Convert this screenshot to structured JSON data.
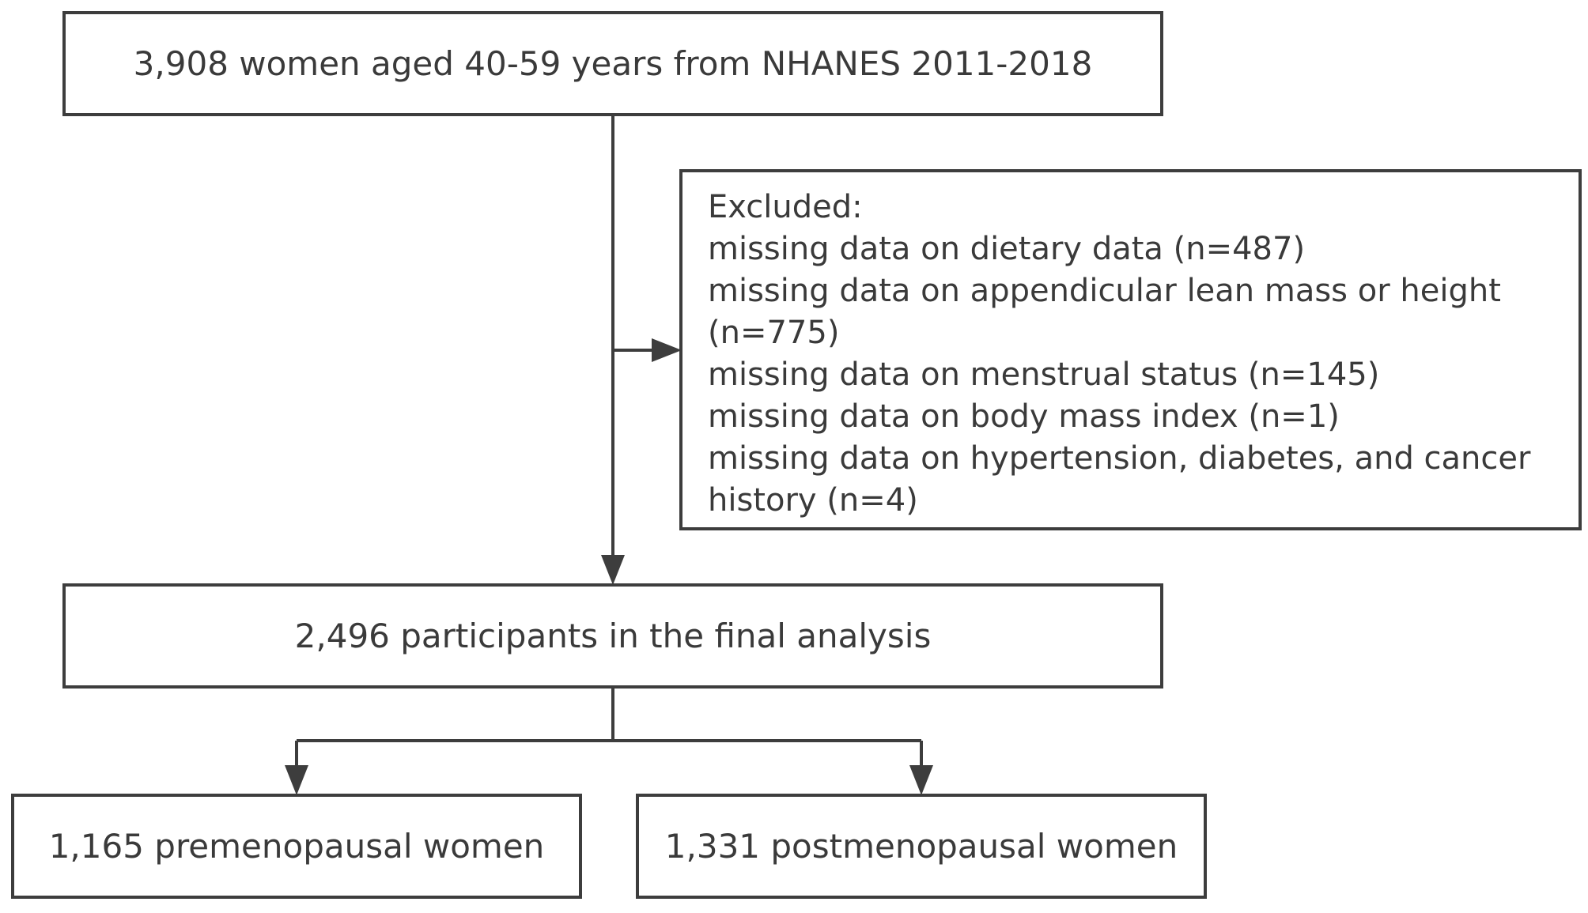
{
  "boxes": {
    "start": "3,908 women aged 40-59 years from NHANES 2011-2018",
    "excluded": {
      "heading": "Excluded:",
      "lines": [
        "missing data on dietary data (n=487)",
        "missing data on appendicular lean mass or height",
        "(n=775)",
        "missing data on menstrual status (n=145)",
        "missing data on body mass index (n=1)",
        "missing data on hypertension, diabetes, and cancer",
        "history (n=4)"
      ]
    },
    "final": "2,496 participants in the final analysis",
    "premenopausal": "1,165 premenopausal women",
    "postmenopausal": "1,331 postmenopausal women"
  },
  "colors": {
    "stroke": "#3d3d3d",
    "text": "#3a3a3a",
    "background": "#ffffff"
  }
}
